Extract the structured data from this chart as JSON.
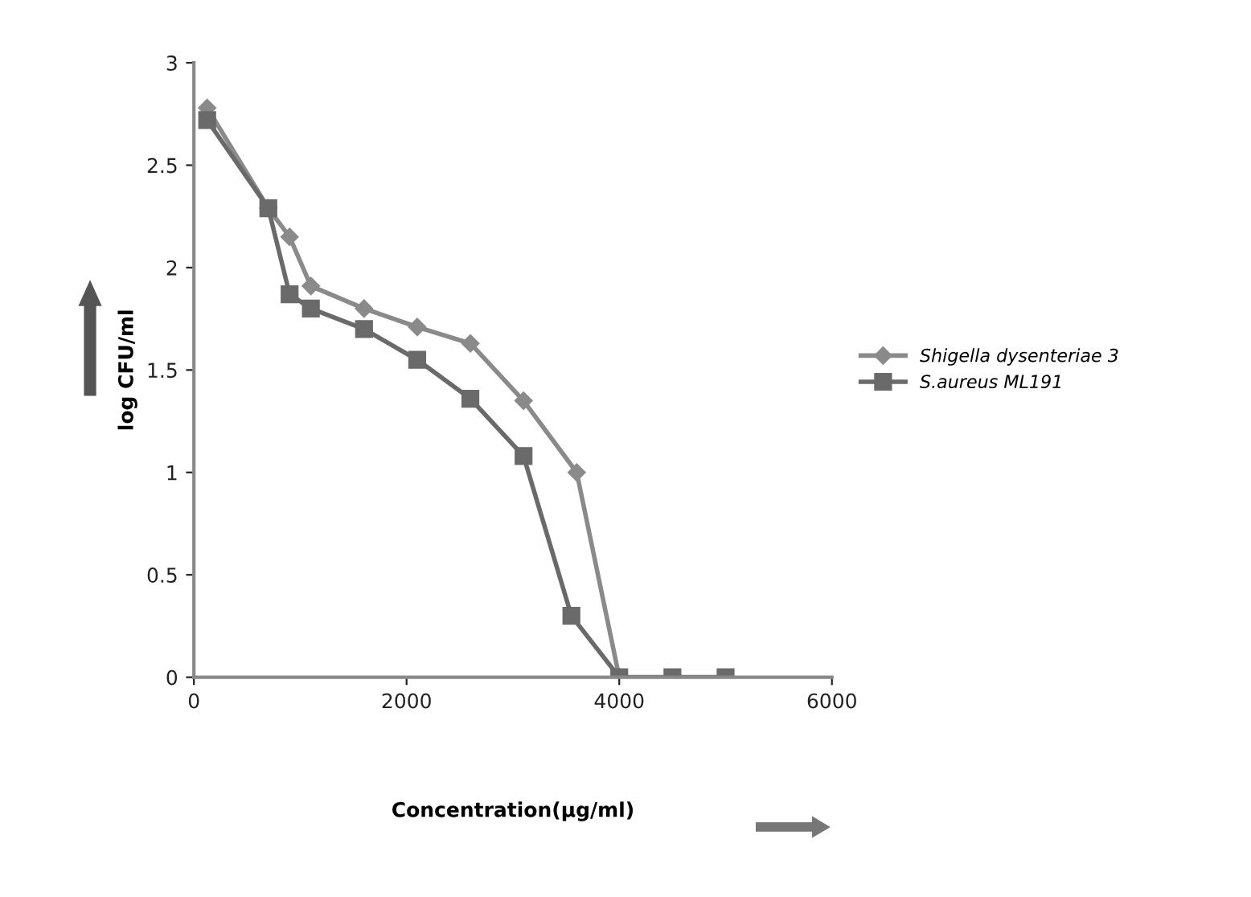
{
  "chart_data": {
    "type": "line",
    "xlabel": "Concentration(µg/ml)",
    "ylabel": "log CFU/ml",
    "xlim": [
      0,
      6000
    ],
    "xticks": [
      0,
      2000,
      4000,
      6000
    ],
    "ylim": [
      0,
      3
    ],
    "yticks": [
      0,
      0.5,
      1,
      1.5,
      2,
      2.5,
      3
    ],
    "grid": false,
    "legend": "right",
    "line_style": "solid",
    "series": [
      {
        "name": "Shigella dysenteriae 3",
        "color": "#8a8a8a",
        "marker": "diamond",
        "x": [
          125,
          700,
          900,
          1100,
          1600,
          2100,
          2600,
          3100,
          3600,
          4000
        ],
        "values": [
          2.78,
          2.29,
          2.15,
          1.91,
          1.8,
          1.71,
          1.63,
          1.35,
          1.0,
          0
        ]
      },
      {
        "name": "S.aureus ML191",
        "color": "#6a6a6a",
        "marker": "square",
        "x": [
          125,
          700,
          900,
          1100,
          1600,
          2100,
          2600,
          3100,
          3550,
          4000,
          4500,
          5000
        ],
        "values": [
          2.72,
          2.29,
          1.87,
          1.8,
          1.7,
          1.55,
          1.36,
          1.08,
          0.3,
          0,
          0,
          0
        ]
      }
    ]
  }
}
